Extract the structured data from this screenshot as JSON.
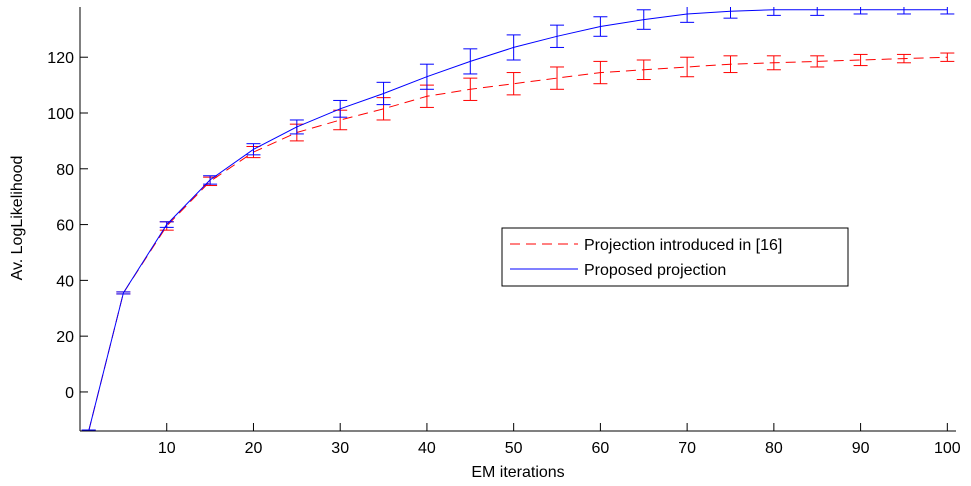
{
  "chart_data": {
    "type": "line",
    "title": "",
    "xlabel": "EM iterations",
    "ylabel": "Av. LogLikelihood",
    "xlim": [
      0,
      101
    ],
    "ylim": [
      -14,
      138
    ],
    "xticks": [
      10,
      20,
      30,
      40,
      50,
      60,
      70,
      80,
      90,
      100
    ],
    "yticks": [
      0,
      20,
      40,
      60,
      80,
      100,
      120
    ],
    "grid": false,
    "legend_position": "center-right",
    "x": [
      1,
      5,
      10,
      15,
      20,
      25,
      30,
      35,
      40,
      45,
      50,
      55,
      60,
      65,
      70,
      75,
      80,
      85,
      90,
      95,
      100
    ],
    "series": [
      {
        "name": "Projection introduced in [16]",
        "color": "#ff0000",
        "style": "dashed",
        "values": [
          -14,
          35.5,
          59.5,
          75.5,
          86,
          93,
          97.5,
          101.5,
          106,
          108.5,
          110.5,
          112.5,
          114.5,
          115.5,
          116.5,
          117.5,
          118,
          118.5,
          119,
          119.5,
          120
        ],
        "error": [
          0,
          0,
          1.5,
          1.5,
          2,
          3,
          3.5,
          4,
          4,
          4,
          4,
          4,
          4,
          3.5,
          3.5,
          3,
          2.5,
          2,
          2,
          1.5,
          1.5
        ]
      },
      {
        "name": "Proposed projection",
        "color": "#0000ff",
        "style": "solid",
        "values": [
          -14,
          35.5,
          60,
          76,
          87,
          95,
          101.5,
          107,
          113,
          118.5,
          123.5,
          127.5,
          131,
          133.5,
          135.5,
          136.5,
          137,
          137,
          137,
          137,
          137
        ],
        "error": [
          0,
          0,
          1,
          1.5,
          2,
          2.5,
          3,
          4,
          4.5,
          4.5,
          4.5,
          4,
          3.5,
          3.5,
          3,
          2.5,
          2,
          2,
          1.5,
          1.5,
          1.5
        ]
      }
    ]
  }
}
